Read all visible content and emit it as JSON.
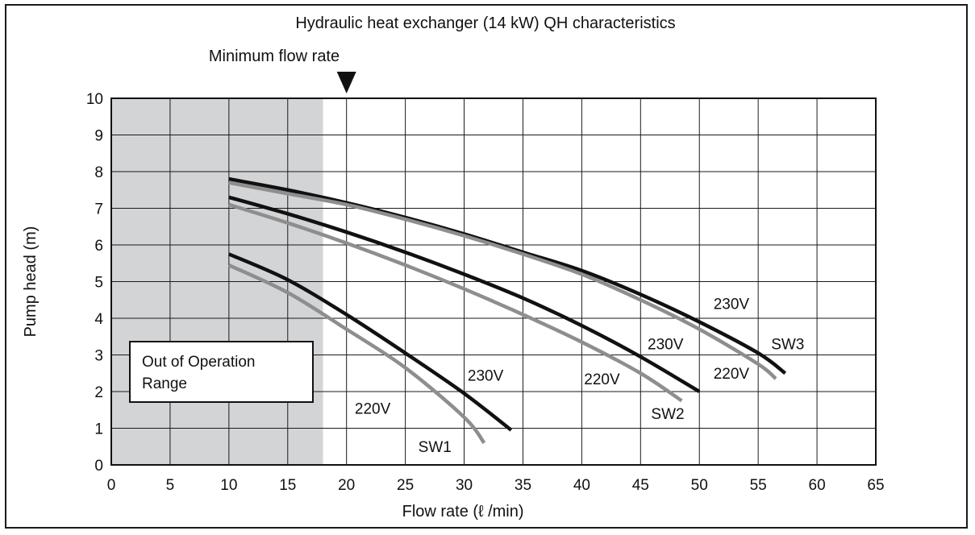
{
  "chart_data": {
    "type": "line",
    "title": "Hydraulic heat exchanger (14 kW) QH characteristics",
    "xlabel": "Flow rate (ℓ /min)",
    "ylabel": "Pump head (m)",
    "xlim": [
      0,
      65
    ],
    "ylim": [
      0,
      10
    ],
    "xticks": [
      "0",
      "5",
      "10",
      "15",
      "20",
      "25",
      "30",
      "35",
      "40",
      "45",
      "50",
      "55",
      "60",
      "65"
    ],
    "yticks": [
      "0",
      "1",
      "2",
      "3",
      "4",
      "5",
      "6",
      "7",
      "8",
      "9",
      "10"
    ],
    "grid": true,
    "shaded_region": {
      "x_from": 0,
      "x_to": 18,
      "label": "Out of Operation Range",
      "color": "#d3d4d6"
    },
    "minimum_flow_marker": {
      "x": 20,
      "label": "Minimum flow rate"
    },
    "series": [
      {
        "group": "SW1",
        "voltage": "230V",
        "color": "#111111",
        "points": [
          [
            10,
            5.75
          ],
          [
            15,
            5.05
          ],
          [
            20,
            4.1
          ],
          [
            25,
            3.05
          ],
          [
            30,
            1.95
          ],
          [
            34,
            0.95
          ]
        ]
      },
      {
        "group": "SW1",
        "voltage": "220V",
        "color": "#8e8e8e",
        "points": [
          [
            10,
            5.45
          ],
          [
            15,
            4.7
          ],
          [
            20,
            3.7
          ],
          [
            25,
            2.65
          ],
          [
            30,
            1.3
          ],
          [
            31.7,
            0.6
          ]
        ]
      },
      {
        "group": "SW2",
        "voltage": "230V",
        "color": "#111111",
        "points": [
          [
            10,
            7.3
          ],
          [
            15,
            6.85
          ],
          [
            20,
            6.35
          ],
          [
            25,
            5.8
          ],
          [
            30,
            5.2
          ],
          [
            35,
            4.55
          ],
          [
            40,
            3.8
          ],
          [
            45,
            2.95
          ],
          [
            50,
            2.0
          ]
        ]
      },
      {
        "group": "SW2",
        "voltage": "220V",
        "color": "#8e8e8e",
        "points": [
          [
            10,
            7.1
          ],
          [
            15,
            6.6
          ],
          [
            20,
            6.05
          ],
          [
            25,
            5.45
          ],
          [
            30,
            4.8
          ],
          [
            35,
            4.1
          ],
          [
            40,
            3.35
          ],
          [
            45,
            2.5
          ],
          [
            48.5,
            1.75
          ]
        ]
      },
      {
        "group": "SW3",
        "voltage": "230V",
        "color": "#111111",
        "points": [
          [
            10,
            7.8
          ],
          [
            15,
            7.5
          ],
          [
            20,
            7.15
          ],
          [
            25,
            6.75
          ],
          [
            30,
            6.3
          ],
          [
            35,
            5.8
          ],
          [
            40,
            5.3
          ],
          [
            45,
            4.65
          ],
          [
            50,
            3.9
          ],
          [
            55,
            3.05
          ],
          [
            57.3,
            2.5
          ]
        ]
      },
      {
        "group": "SW3",
        "voltage": "220V",
        "color": "#8e8e8e",
        "points": [
          [
            10,
            7.7
          ],
          [
            15,
            7.4
          ],
          [
            20,
            7.1
          ],
          [
            25,
            6.7
          ],
          [
            30,
            6.25
          ],
          [
            35,
            5.75
          ],
          [
            40,
            5.2
          ],
          [
            45,
            4.5
          ],
          [
            50,
            3.7
          ],
          [
            55,
            2.75
          ],
          [
            56.5,
            2.35
          ]
        ]
      }
    ],
    "annotations": [
      {
        "text": "230V",
        "x": 30.3,
        "y": 2.3
      },
      {
        "text": "220V",
        "x": 20.7,
        "y": 1.4
      },
      {
        "text": "SW1",
        "x": 26.1,
        "y": 0.35
      },
      {
        "text": "220V",
        "x": 40.2,
        "y": 2.2
      },
      {
        "text": "230V",
        "x": 45.6,
        "y": 3.15
      },
      {
        "text": "SW2",
        "x": 45.9,
        "y": 1.25
      },
      {
        "text": "230V",
        "x": 51.2,
        "y": 4.25
      },
      {
        "text": "220V",
        "x": 51.2,
        "y": 2.35
      },
      {
        "text": "SW3",
        "x": 56.1,
        "y": 3.15
      }
    ]
  }
}
